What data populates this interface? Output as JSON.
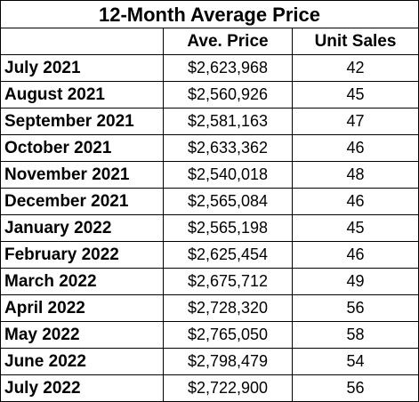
{
  "table": {
    "title": "12-Month Average Price",
    "headers": [
      "",
      "Ave. Price",
      "Unit Sales"
    ],
    "rows": [
      {
        "month": "July 2021",
        "price": "$2,623,968",
        "units": "42"
      },
      {
        "month": "August 2021",
        "price": "$2,560,926",
        "units": "45"
      },
      {
        "month": "September 2021",
        "price": "$2,581,163",
        "units": "47"
      },
      {
        "month": "October 2021",
        "price": "$2,633,362",
        "units": "46"
      },
      {
        "month": "November 2021",
        "price": "$2,540,018",
        "units": "48"
      },
      {
        "month": "December 2021",
        "price": "$2,565,084",
        "units": "46"
      },
      {
        "month": "January 2022",
        "price": "$2,565,198",
        "units": "45"
      },
      {
        "month": "February 2022",
        "price": "$2,625,454",
        "units": "46"
      },
      {
        "month": "March 2022",
        "price": "$2,675,712",
        "units": "49"
      },
      {
        "month": "April 2022",
        "price": "$2,728,320",
        "units": "56"
      },
      {
        "month": "May 2022",
        "price": "$2,765,050",
        "units": "58"
      },
      {
        "month": "June 2022",
        "price": "$2,798,479",
        "units": "54"
      },
      {
        "month": "July 2022",
        "price": "$2,722,900",
        "units": "56"
      }
    ]
  }
}
